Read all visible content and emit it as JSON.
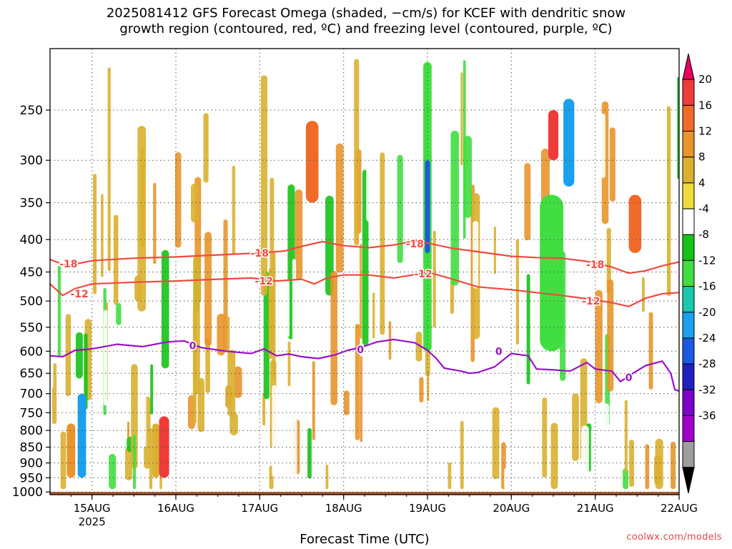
{
  "chart_data": {
    "type": "heatmap",
    "title": "2025081412 GFS Forecast Omega (shaded, −cm/s) for KCEF with dendritic snow\ngrowth region (contoured, red, ºC) and freezing level (contoured, purple, ºC)",
    "xlabel": "Forecast Time (UTC)",
    "ylabel": "",
    "x_ticks": [
      "15AUG",
      "16AUG",
      "17AUG",
      "18AUG",
      "19AUG",
      "20AUG",
      "21AUG",
      "22AUG"
    ],
    "x_tick_year": "2025",
    "x_range_days": [
      14.5,
      22.0
    ],
    "y_ticks": [
      250,
      300,
      350,
      400,
      450,
      500,
      550,
      600,
      650,
      700,
      750,
      800,
      850,
      900,
      950,
      1000
    ],
    "y_range_hpa": [
      200,
      1010
    ],
    "y_scale": "log",
    "grid": true,
    "colorbar": {
      "labels": [
        20,
        16,
        12,
        8,
        4,
        -4,
        -8,
        -12,
        -16,
        -20,
        -24,
        -28,
        -32,
        -36
      ],
      "colors": [
        "#e8005e",
        "#ee3c3a",
        "#f06a2a",
        "#e8952b",
        "#d9b030",
        "#eedc3c",
        "#ffffff",
        "#16c216",
        "#40de40",
        "#17c8aa",
        "#1aa0ec",
        "#1b5ae0",
        "#2020c0",
        "#7b00c8",
        "#a000cc",
        "#9e9e9e",
        "#000000"
      ]
    },
    "contours": [
      {
        "label": "-18",
        "color": "#f04a40",
        "points": [
          [
            14.5,
            430
          ],
          [
            14.7,
            440
          ],
          [
            15.0,
            432
          ],
          [
            15.5,
            428
          ],
          [
            16.0,
            426
          ],
          [
            16.5,
            423
          ],
          [
            17.0,
            420
          ],
          [
            17.3,
            417
          ],
          [
            17.5,
            410
          ],
          [
            17.75,
            403
          ],
          [
            18.0,
            409
          ],
          [
            18.3,
            412
          ],
          [
            18.6,
            408
          ],
          [
            18.85,
            402
          ],
          [
            19.0,
            405
          ],
          [
            19.3,
            413
          ],
          [
            19.6,
            418
          ],
          [
            20.0,
            425
          ],
          [
            20.3,
            427
          ],
          [
            20.6,
            428
          ],
          [
            20.9,
            433
          ],
          [
            21.2,
            442
          ],
          [
            21.4,
            452
          ],
          [
            21.6,
            448
          ],
          [
            21.8,
            440
          ],
          [
            22.0,
            434
          ]
        ]
      },
      {
        "label": "-12",
        "color": "#f04a40",
        "points": [
          [
            14.5,
            470
          ],
          [
            14.65,
            490
          ],
          [
            14.8,
            478
          ],
          [
            15.0,
            470
          ],
          [
            15.5,
            467
          ],
          [
            16.0,
            465
          ],
          [
            16.5,
            462
          ],
          [
            16.9,
            460
          ],
          [
            17.2,
            465
          ],
          [
            17.5,
            462
          ],
          [
            17.65,
            470
          ],
          [
            17.8,
            460
          ],
          [
            18.0,
            455
          ],
          [
            18.3,
            455
          ],
          [
            18.6,
            460
          ],
          [
            18.9,
            453
          ],
          [
            19.0,
            450
          ],
          [
            19.3,
            462
          ],
          [
            19.6,
            475
          ],
          [
            20.0,
            480
          ],
          [
            20.3,
            485
          ],
          [
            20.6,
            490
          ],
          [
            20.9,
            496
          ],
          [
            21.2,
            503
          ],
          [
            21.4,
            510
          ],
          [
            21.6,
            495
          ],
          [
            21.8,
            487
          ],
          [
            22.0,
            485
          ]
        ]
      },
      {
        "label": "0",
        "color": "#9a12c8",
        "points": [
          [
            14.5,
            610
          ],
          [
            14.65,
            612
          ],
          [
            14.8,
            598
          ],
          [
            15.0,
            595
          ],
          [
            15.3,
            585
          ],
          [
            15.6,
            590
          ],
          [
            15.9,
            580
          ],
          [
            16.1,
            578
          ],
          [
            16.3,
            592
          ],
          [
            16.6,
            600
          ],
          [
            16.9,
            605
          ],
          [
            17.05,
            595
          ],
          [
            17.2,
            610
          ],
          [
            17.35,
            606
          ],
          [
            17.5,
            612
          ],
          [
            17.7,
            616
          ],
          [
            17.9,
            608
          ],
          [
            18.05,
            598
          ],
          [
            18.2,
            592
          ],
          [
            18.4,
            580
          ],
          [
            18.6,
            575
          ],
          [
            18.85,
            582
          ],
          [
            19.0,
            598
          ],
          [
            19.1,
            615
          ],
          [
            19.2,
            638
          ],
          [
            19.4,
            645
          ],
          [
            19.5,
            650
          ],
          [
            19.6,
            648
          ],
          [
            19.8,
            635
          ],
          [
            20.0,
            605
          ],
          [
            20.2,
            610
          ],
          [
            20.3,
            640
          ],
          [
            20.5,
            642
          ],
          [
            20.7,
            645
          ],
          [
            20.9,
            625
          ],
          [
            21.0,
            640
          ],
          [
            21.2,
            645
          ],
          [
            21.3,
            670
          ],
          [
            21.45,
            650
          ],
          [
            21.6,
            632
          ],
          [
            21.8,
            622
          ],
          [
            21.9,
            650
          ],
          [
            21.95,
            690
          ],
          [
            22.0,
            693
          ]
        ]
      }
    ],
    "contour_labels": [
      {
        "label": "-18",
        "x": 14.72,
        "y": 437
      },
      {
        "label": "-18",
        "x": 17.0,
        "y": 420
      },
      {
        "label": "-18",
        "x": 18.85,
        "y": 406
      },
      {
        "label": "-18",
        "x": 21.0,
        "y": 438
      },
      {
        "label": "-12",
        "x": 14.85,
        "y": 487
      },
      {
        "label": "-12",
        "x": 17.05,
        "y": 465
      },
      {
        "label": "-12",
        "x": 18.95,
        "y": 453
      },
      {
        "label": "-12",
        "x": 20.95,
        "y": 500
      },
      {
        "label": "0",
        "x": 16.2,
        "y": 588
      },
      {
        "label": "0",
        "x": 18.2,
        "y": 596
      },
      {
        "label": "0",
        "x": 19.85,
        "y": 600
      },
      {
        "label": "0",
        "x": 21.4,
        "y": 660
      }
    ],
    "omega_features": [
      {
        "x": [
          14.83,
          14.93
        ],
        "p": [
          700,
          950
        ],
        "v": -22
      },
      {
        "x": [
          14.7,
          14.8
        ],
        "p": [
          780,
          950
        ],
        "v": 8
      },
      {
        "x": [
          15.8,
          15.92
        ],
        "p": [
          760,
          950
        ],
        "v": 16
      },
      {
        "x": [
          15.72,
          15.8
        ],
        "p": [
          780,
          950
        ],
        "v": 6
      },
      {
        "x": [
          15.95,
          16.05
        ],
        "p": [
          820,
          950
        ],
        "v": -8
      },
      {
        "x": [
          17.55,
          17.7
        ],
        "p": [
          260,
          350
        ],
        "v": 12
      },
      {
        "x": [
          18.95,
          19.05
        ],
        "p": [
          210,
          600
        ],
        "v": -16
      },
      {
        "x": [
          18.97,
          19.03
        ],
        "p": [
          300,
          420
        ],
        "v": -28
      },
      {
        "x": [
          20.4,
          20.56
        ],
        "p": [
          360,
          540
        ],
        "v": -36
      },
      {
        "x": [
          20.34,
          20.62
        ],
        "p": [
          340,
          600
        ],
        "v": -14
      },
      {
        "x": [
          20.44,
          20.56
        ],
        "p": [
          250,
          300
        ],
        "v": 18
      },
      {
        "x": [
          20.62,
          20.75
        ],
        "p": [
          240,
          330
        ],
        "v": -22
      },
      {
        "x": [
          21.4,
          21.55
        ],
        "p": [
          340,
          420
        ],
        "v": 14
      }
    ],
    "ground": {
      "color": "#a0522d",
      "top_hpa": 1000
    }
  },
  "credit": "coolwx.com/models"
}
